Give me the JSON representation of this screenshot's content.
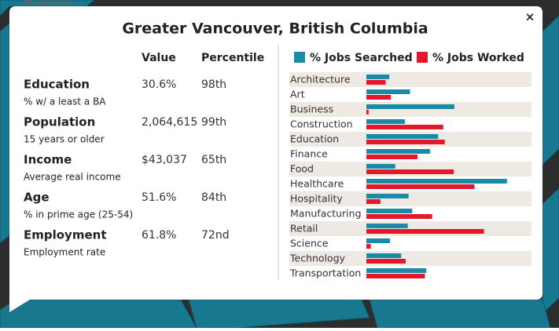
{
  "map": {
    "label": "Beaufor"
  },
  "popup": {
    "title": "Greater Vancouver, British Columbia",
    "close": "×",
    "table": {
      "columns": [
        "Value",
        "Percentile"
      ],
      "rows": [
        {
          "label": "Education",
          "sublabel": "% w/ a least a BA",
          "value": "30.6%",
          "percentile": "98th"
        },
        {
          "label": "Population",
          "sublabel": "15 years or older",
          "value": "2,064,615",
          "percentile": "99th"
        },
        {
          "label": "Income",
          "sublabel": "Average real income",
          "value": "$43,037",
          "percentile": "65th"
        },
        {
          "label": "Age",
          "sublabel": "% in prime age (25-54)",
          "value": "51.6%",
          "percentile": "84th"
        },
        {
          "label": "Employment",
          "sublabel": "Employment rate",
          "value": "61.8%",
          "percentile": "72nd"
        }
      ]
    }
  },
  "chart_data": {
    "type": "hbar",
    "categories": [
      "Architecture",
      "Art",
      "Business",
      "Construction",
      "Education",
      "Finance",
      "Food",
      "Healthcare",
      "Hospitality",
      "Manufacturing",
      "Retail",
      "Science",
      "Technology",
      "Transportation"
    ],
    "series": [
      {
        "name": "% Jobs Searched",
        "color": "#1a8aa6",
        "values": [
          3.1,
          5.9,
          11.9,
          5.2,
          9.7,
          8.6,
          3.9,
          19.0,
          5.7,
          6.2,
          5.6,
          3.2,
          4.7,
          8.1
        ]
      },
      {
        "name": "% Jobs Worked",
        "color": "#e3182d",
        "values": [
          2.6,
          3.3,
          0.3,
          10.4,
          10.6,
          6.9,
          11.8,
          14.6,
          1.9,
          8.9,
          15.9,
          0.6,
          5.3,
          7.9
        ]
      }
    ],
    "xlim": [
      0,
      22
    ],
    "row_shading": "#efe9e4"
  }
}
